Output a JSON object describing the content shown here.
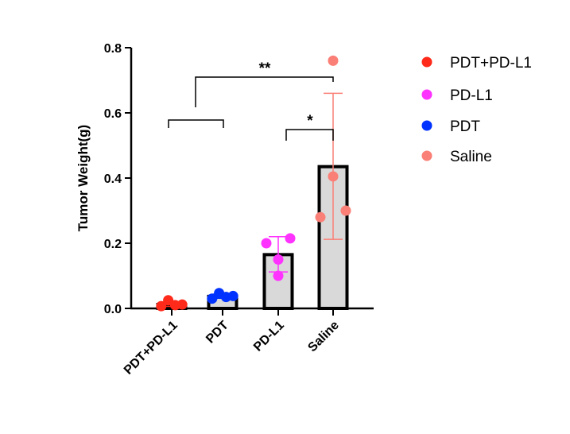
{
  "chart_data": {
    "type": "bar",
    "title": "",
    "xlabel": "",
    "ylabel": "Tumor Weight(g)",
    "ylim": [
      0,
      0.8
    ],
    "yticks": [
      0.0,
      0.2,
      0.4,
      0.6,
      0.8
    ],
    "ytick_labels": [
      "0.0",
      "0.2",
      "0.4",
      "0.6",
      "0.8"
    ],
    "categories": [
      "PDT+PD-L1",
      "PDT",
      "PD-L1",
      "Saline"
    ],
    "grid": false,
    "bar_fill": "#d9d9d9",
    "bar_edge": "#000000",
    "series": [
      {
        "name": "PDT+PD-L1",
        "color": "#ff2a1a",
        "mean": 0.012,
        "error_low": 0.006,
        "error_high": 0.018,
        "points": [
          0.007,
          0.025,
          0.01,
          0.012
        ]
      },
      {
        "name": "PDT",
        "color": "#0033ff",
        "mean": 0.037,
        "error_low": 0.031,
        "error_high": 0.044,
        "points": [
          0.03,
          0.047,
          0.035,
          0.038
        ]
      },
      {
        "name": "PD-L1",
        "color": "#ff33ff",
        "mean": 0.165,
        "error_low": 0.112,
        "error_high": 0.22,
        "points": [
          0.2,
          0.215,
          0.15,
          0.1
        ]
      },
      {
        "name": "Saline",
        "color": "#fa7f76",
        "mean": 0.435,
        "error_low": 0.212,
        "error_high": 0.66,
        "points": [
          0.76,
          0.405,
          0.28,
          0.3
        ]
      }
    ],
    "legend": {
      "placement": "right",
      "entries": [
        {
          "label": "PDT+PD-L1",
          "color": "#ff2a1a"
        },
        {
          "label": "PD-L1",
          "color": "#ff33ff"
        },
        {
          "label": "PDT",
          "color": "#0033ff"
        },
        {
          "label": "Saline",
          "color": "#fa7f76"
        }
      ]
    },
    "significance": [
      {
        "label": "**",
        "from": "PDT+PD-L1 vs PDT (group)",
        "to": "Saline"
      },
      {
        "label": "*",
        "from": "PD-L1",
        "to": "Saline"
      }
    ]
  }
}
